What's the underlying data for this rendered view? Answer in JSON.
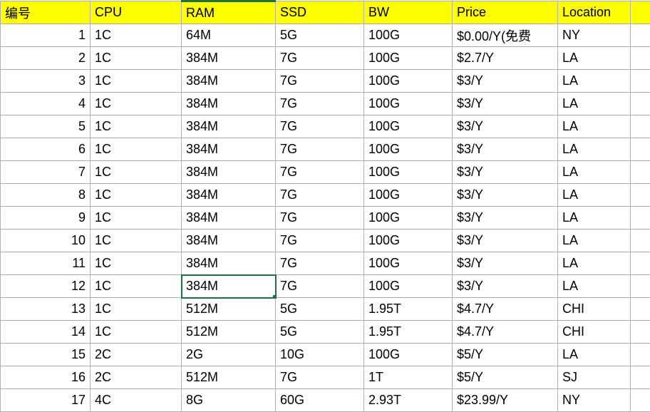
{
  "table": {
    "header_bg": "#ffff00",
    "border_color": "#b0b0b0",
    "selection_color": "#1e7145",
    "columns": [
      "编号",
      "CPU",
      "RAM",
      "SSD",
      "BW",
      "Price",
      "Location"
    ],
    "selected": {
      "row": 12,
      "col": 2
    },
    "rows": [
      {
        "num": "1",
        "cpu": "1C",
        "ram": "64M",
        "ssd": "5G",
        "bw": "100G",
        "price": "$0.00/Y(免费",
        "loc": "NY"
      },
      {
        "num": "2",
        "cpu": "1C",
        "ram": "384M",
        "ssd": "7G",
        "bw": "100G",
        "price": "$2.7/Y",
        "loc": "LA"
      },
      {
        "num": "3",
        "cpu": "1C",
        "ram": "384M",
        "ssd": "7G",
        "bw": "100G",
        "price": "$3/Y",
        "loc": "LA"
      },
      {
        "num": "4",
        "cpu": "1C",
        "ram": "384M",
        "ssd": "7G",
        "bw": "100G",
        "price": "$3/Y",
        "loc": "LA"
      },
      {
        "num": "5",
        "cpu": "1C",
        "ram": "384M",
        "ssd": "7G",
        "bw": "100G",
        "price": "$3/Y",
        "loc": "LA"
      },
      {
        "num": "6",
        "cpu": "1C",
        "ram": "384M",
        "ssd": "7G",
        "bw": "100G",
        "price": "$3/Y",
        "loc": "LA"
      },
      {
        "num": "7",
        "cpu": "1C",
        "ram": "384M",
        "ssd": "7G",
        "bw": "100G",
        "price": "$3/Y",
        "loc": "LA"
      },
      {
        "num": "8",
        "cpu": "1C",
        "ram": "384M",
        "ssd": "7G",
        "bw": "100G",
        "price": "$3/Y",
        "loc": "LA"
      },
      {
        "num": "9",
        "cpu": "1C",
        "ram": "384M",
        "ssd": "7G",
        "bw": "100G",
        "price": "$3/Y",
        "loc": "LA"
      },
      {
        "num": "10",
        "cpu": "1C",
        "ram": "384M",
        "ssd": "7G",
        "bw": "100G",
        "price": "$3/Y",
        "loc": "LA"
      },
      {
        "num": "11",
        "cpu": "1C",
        "ram": "384M",
        "ssd": "7G",
        "bw": "100G",
        "price": "$3/Y",
        "loc": "LA"
      },
      {
        "num": "12",
        "cpu": "1C",
        "ram": "384M",
        "ssd": "7G",
        "bw": "100G",
        "price": "$3/Y",
        "loc": "LA"
      },
      {
        "num": "13",
        "cpu": "1C",
        "ram": "512M",
        "ssd": "5G",
        "bw": "1.95T",
        "price": "$4.7/Y",
        "loc": "CHI"
      },
      {
        "num": "14",
        "cpu": "1C",
        "ram": "512M",
        "ssd": "5G",
        "bw": "1.95T",
        "price": "$4.7/Y",
        "loc": "CHI"
      },
      {
        "num": "15",
        "cpu": "2C",
        "ram": "2G",
        "ssd": "10G",
        "bw": "100G",
        "price": "$5/Y",
        "loc": "LA"
      },
      {
        "num": "16",
        "cpu": "2C",
        "ram": "512M",
        "ssd": "7G",
        "bw": "1T",
        "price": "$5/Y",
        "loc": "SJ"
      },
      {
        "num": "17",
        "cpu": "4C",
        "ram": "8G",
        "ssd": "60G",
        "bw": "2.93T",
        "price": "$23.99/Y",
        "loc": "NY"
      }
    ]
  }
}
